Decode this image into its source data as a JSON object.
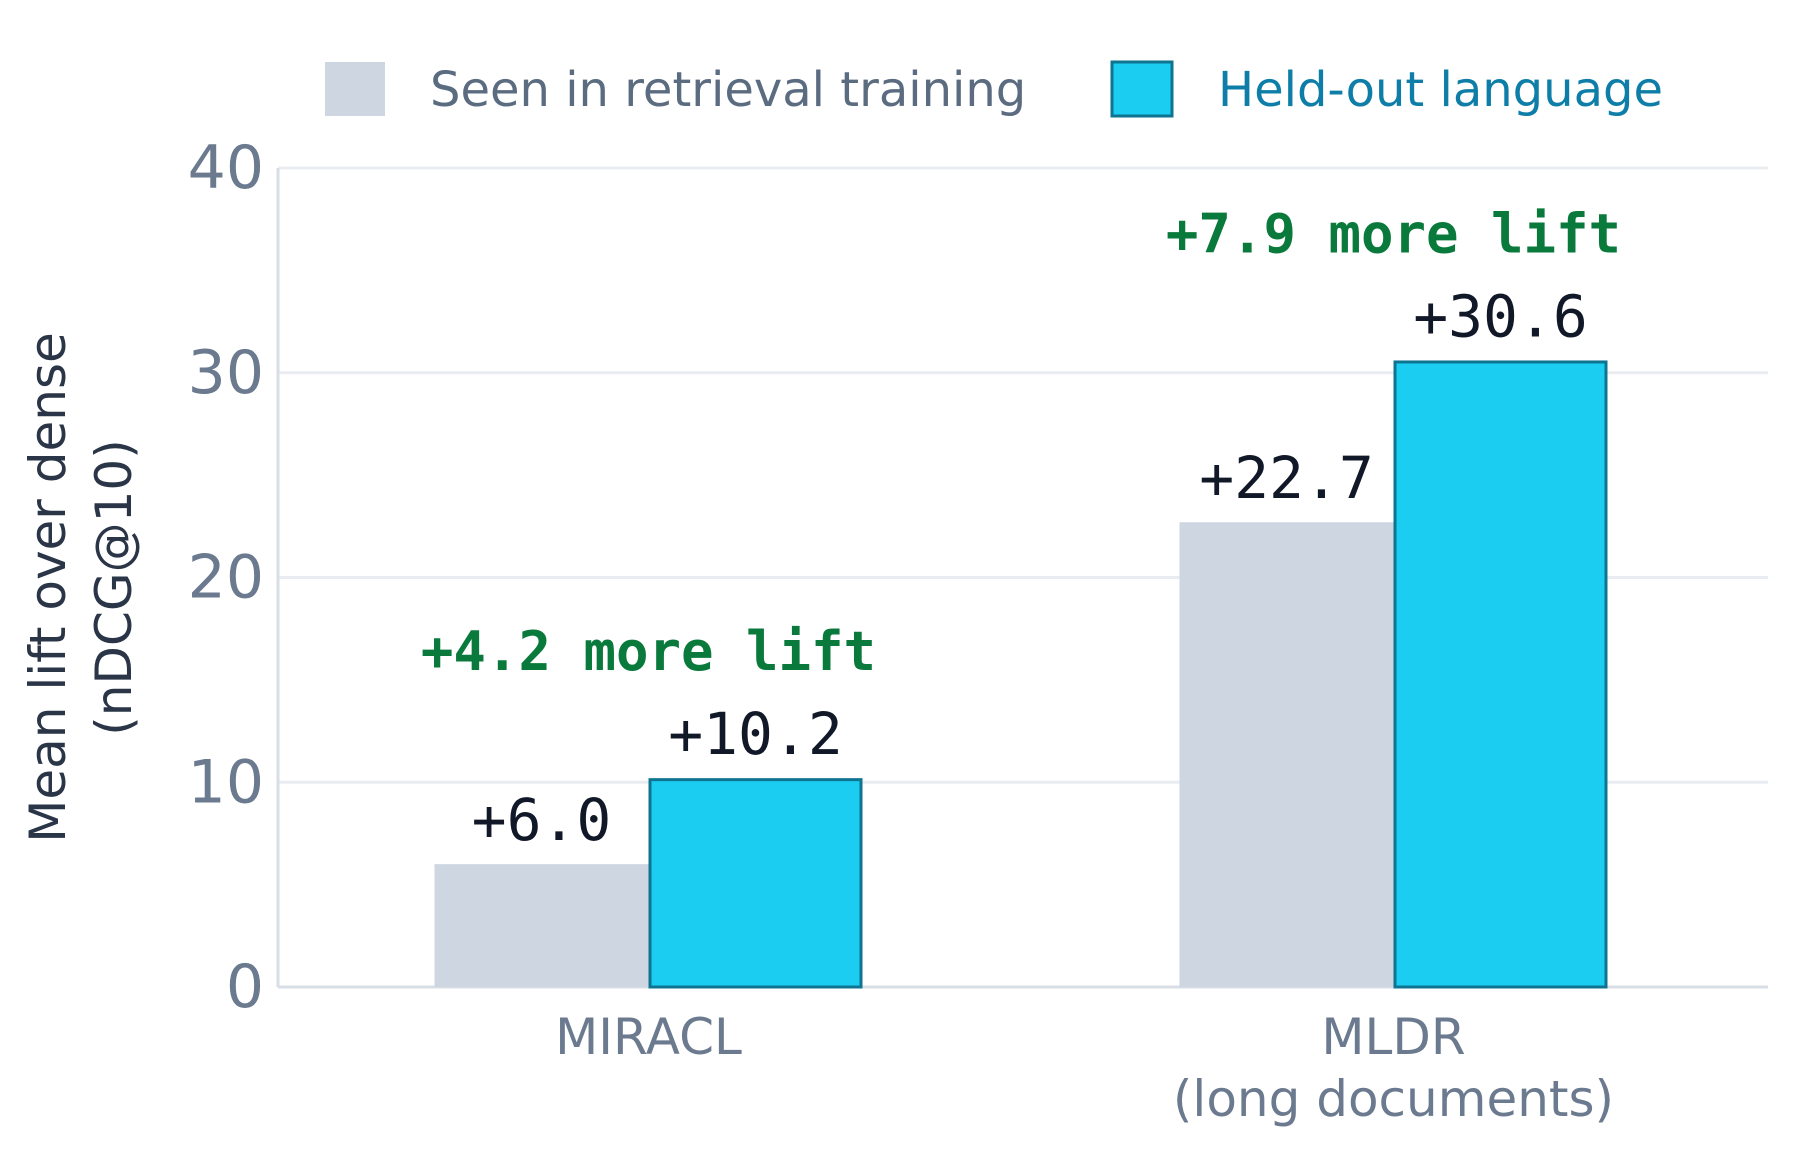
{
  "chart_data": {
    "type": "bar",
    "categories": [
      [
        "MIRACL"
      ],
      [
        "MLDR",
        "(long documents)"
      ]
    ],
    "series": [
      {
        "name": "Seen in retrieval training",
        "values": [
          6.0,
          22.7
        ],
        "labels": [
          "+6.0",
          "+22.7"
        ],
        "color": "#cdd6e1",
        "stroke": "none",
        "legend_text_color": "#5b6b80"
      },
      {
        "name": "Held-out language",
        "values": [
          10.2,
          30.6
        ],
        "labels": [
          "+10.2",
          "+30.6"
        ],
        "color": "#1ccdf2",
        "stroke": "#0e7490",
        "legend_text_color": "#0e7ea8"
      }
    ],
    "annotations": [
      "+4.2 more lift",
      "+7.9 more lift"
    ],
    "ylabel": [
      "Mean lift over dense",
      "(nDCG@10)"
    ],
    "xlabel": "",
    "title": "",
    "ylim": [
      0,
      40
    ],
    "yticks": [
      0,
      10,
      20,
      30,
      40
    ],
    "grid": "horizontal",
    "legend_position": "top",
    "colors": {
      "grid": "#e9edf2",
      "axis": "#d8dee6",
      "annotation": "#0a7a3c"
    }
  }
}
